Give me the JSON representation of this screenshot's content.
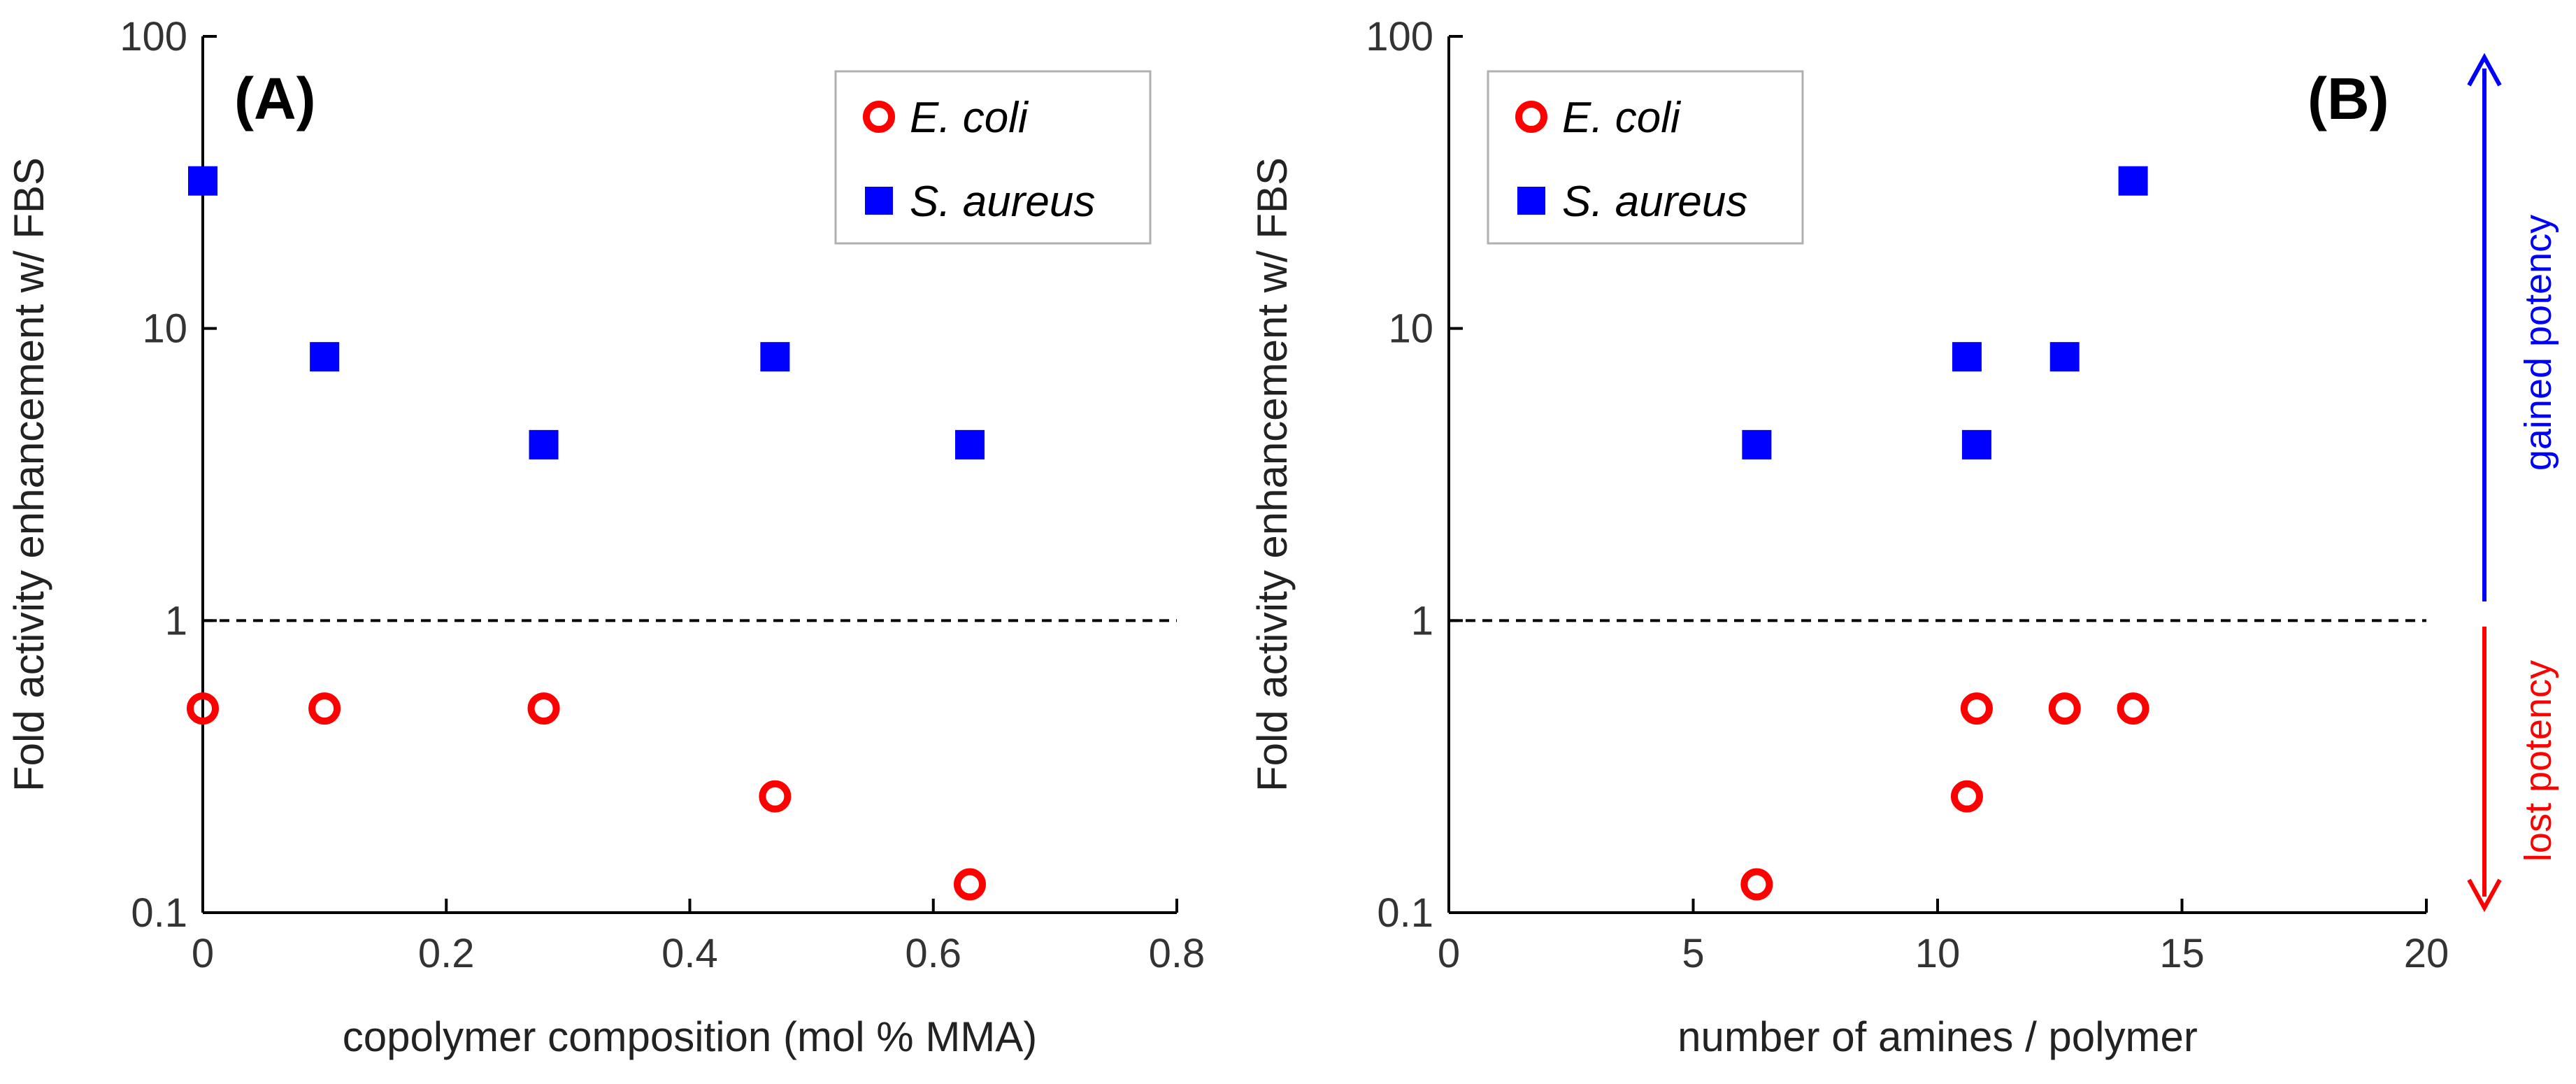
{
  "chart_data": [
    {
      "type": "scatter",
      "panel_label": "(A)",
      "xlabel": "copolymer composition (mol % MMA)",
      "ylabel": "Fold activity enhancement  w/ FBS",
      "xlim": [
        0,
        0.8
      ],
      "ylim": [
        0.1,
        100
      ],
      "yscale": "log",
      "x_ticks": [
        "0",
        "0.2",
        "0.4",
        "0.6",
        "0.8"
      ],
      "y_ticks": [
        "0.1",
        "1",
        "10",
        "100"
      ],
      "reference_line": {
        "y": 1,
        "style": "dashed"
      },
      "legend_position": "top-right",
      "series": [
        {
          "name": "E. coli",
          "marker": "open-circle",
          "color": "#ff0000",
          "x": [
            0,
            0.1,
            0.28,
            0.47,
            0.63
          ],
          "y": [
            0.5,
            0.5,
            0.5,
            0.25,
            0.125
          ]
        },
        {
          "name": "S. aureus",
          "marker": "filled-square",
          "color": "#0000ff",
          "x": [
            0,
            0.1,
            0.28,
            0.47,
            0.63
          ],
          "y": [
            32,
            8,
            4,
            8,
            4
          ]
        }
      ]
    },
    {
      "type": "scatter",
      "panel_label": "(B)",
      "xlabel": "number of amines / polymer",
      "ylabel": "Fold activity enhancement  w/ FBS",
      "xlim": [
        0,
        20
      ],
      "ylim": [
        0.1,
        100
      ],
      "yscale": "log",
      "x_ticks": [
        "0",
        "5",
        "10",
        "15",
        "20"
      ],
      "y_ticks": [
        "0.1",
        "1",
        "10",
        "100"
      ],
      "reference_line": {
        "y": 1,
        "style": "dashed"
      },
      "legend_position": "top-left",
      "series": [
        {
          "name": "E. coli",
          "marker": "open-circle",
          "color": "#ff0000",
          "x": [
            6.3,
            10.6,
            10.8,
            12.6,
            14.0
          ],
          "y": [
            0.125,
            0.25,
            0.5,
            0.5,
            0.5
          ]
        },
        {
          "name": "S. aureus",
          "marker": "filled-square",
          "color": "#0000ff",
          "x": [
            6.3,
            10.6,
            10.8,
            12.6,
            14.0
          ],
          "y": [
            4,
            8,
            4,
            8,
            32
          ]
        }
      ]
    }
  ],
  "annotations": {
    "gained": {
      "text": "gained potency",
      "color": "#0000ff"
    },
    "lost": {
      "text": "lost potency",
      "color": "#ff0000"
    }
  }
}
